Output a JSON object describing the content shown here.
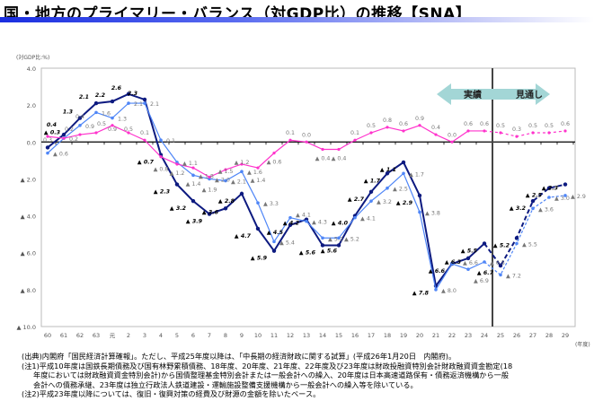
{
  "title": "国・地方のプライマリー・バランス（対GDP比）の推移【SNA】",
  "colors": {
    "dark": "#0d1a80",
    "light": "#4f86f7",
    "pink": "#ff33cc",
    "arrow": "#a3d6d6",
    "divider": "#444444"
  },
  "chart_data": {
    "type": "line",
    "title": "国・地方のプライマリー・バランス（対GDP比）の推移【SNA】",
    "ylabel": "(対GDP比:%)",
    "xlabel": "(年度)",
    "ylim": [
      -10,
      4
    ],
    "yticks": [
      4,
      2,
      0,
      -2,
      -4,
      -6,
      -8,
      -10
    ],
    "ytick_labels": [
      "4.0",
      "2.0",
      "0.0",
      "▲ 2.0",
      "▲ 4.0",
      "▲ 6.0",
      "▲ 8.0",
      "▲ 10.0"
    ],
    "categories": [
      "60",
      "61",
      "62",
      "63",
      "元",
      "2",
      "3",
      "4",
      "5",
      "6",
      "7",
      "8",
      "9",
      "10",
      "11",
      "12",
      "13",
      "14",
      "15",
      "16",
      "17",
      "18",
      "19",
      "20",
      "21",
      "22",
      "23",
      "24",
      "25",
      "26",
      "27",
      "28",
      "29"
    ],
    "actual_last_index": 27,
    "annotations": {
      "actual": "実績",
      "outlook": "見通し"
    },
    "series": [
      {
        "name": "dark",
        "values": [
          -0.3,
          0.4,
          1.3,
          2.1,
          2.2,
          2.6,
          2.3,
          -0.7,
          -2.3,
          -3.2,
          -3.9,
          -3.6,
          -2.8,
          -4.7,
          -5.9,
          -4.5,
          -4.2,
          -5.6,
          -5.6,
          -4.0,
          -2.7,
          -1.7,
          -1.1,
          -2.9,
          -7.8,
          -6.6,
          -6.3,
          -5.5,
          -6.7,
          -5.2,
          -3.2,
          -2.5,
          -2.3
        ]
      },
      {
        "name": "light",
        "values": [
          -0.6,
          0.2,
          0.9,
          1.6,
          1.3,
          2.1,
          2.1,
          0.1,
          -1.1,
          -1.8,
          -2.0,
          -2.1,
          -1.6,
          -3.3,
          -5.4,
          -4.1,
          -4.3,
          -5.2,
          -5.2,
          -4.1,
          -3.2,
          -2.5,
          -1.7,
          -3.8,
          -8.0,
          -6.6,
          -6.9,
          -6.5,
          -7.2,
          -5.5,
          -3.6,
          -3.0,
          -2.9
        ]
      },
      {
        "name": "pink",
        "values": [
          0.3,
          0.2,
          0.4,
          0.5,
          0.9,
          0.5,
          0.1,
          -0.8,
          -1.2,
          -1.4,
          -1.9,
          -1.5,
          -1.2,
          -1.4,
          -0.6,
          0.1,
          0.0,
          -0.4,
          -0.4,
          0.1,
          0.5,
          0.8,
          0.6,
          0.9,
          0.4,
          0.0,
          0.6,
          0.6,
          0.5,
          0.3,
          0.5,
          0.5,
          0.6
        ]
      }
    ]
  },
  "notes": [
    "(出典)内閣府「国民経済計算確報」。ただし、平成25年度以降は、「中長期の経済財政に関する試算」(平成26年1月20日　内閣府)。",
    "(注1)平成10年度は国鉄長期債務及び国有林野累積債務、18年度、20年度、21年度、22年度及び23年度は財政投融資特別会計財政融資資金勘定(18",
    "年度においては財政融資資金特別会計)から国債整理基金特別会計または一般会計への繰入、20年度は日本高速道路保有・債務返済機構から一般",
    "会計への債務承継、23年度は独立行政法人鉄道建設・運輸施設整備支援機構から一般会計への繰入等を除いている。",
    "(注2)平成23年度以降については、復旧・復興対策の経費及び財源の金額を除いたベース。"
  ]
}
